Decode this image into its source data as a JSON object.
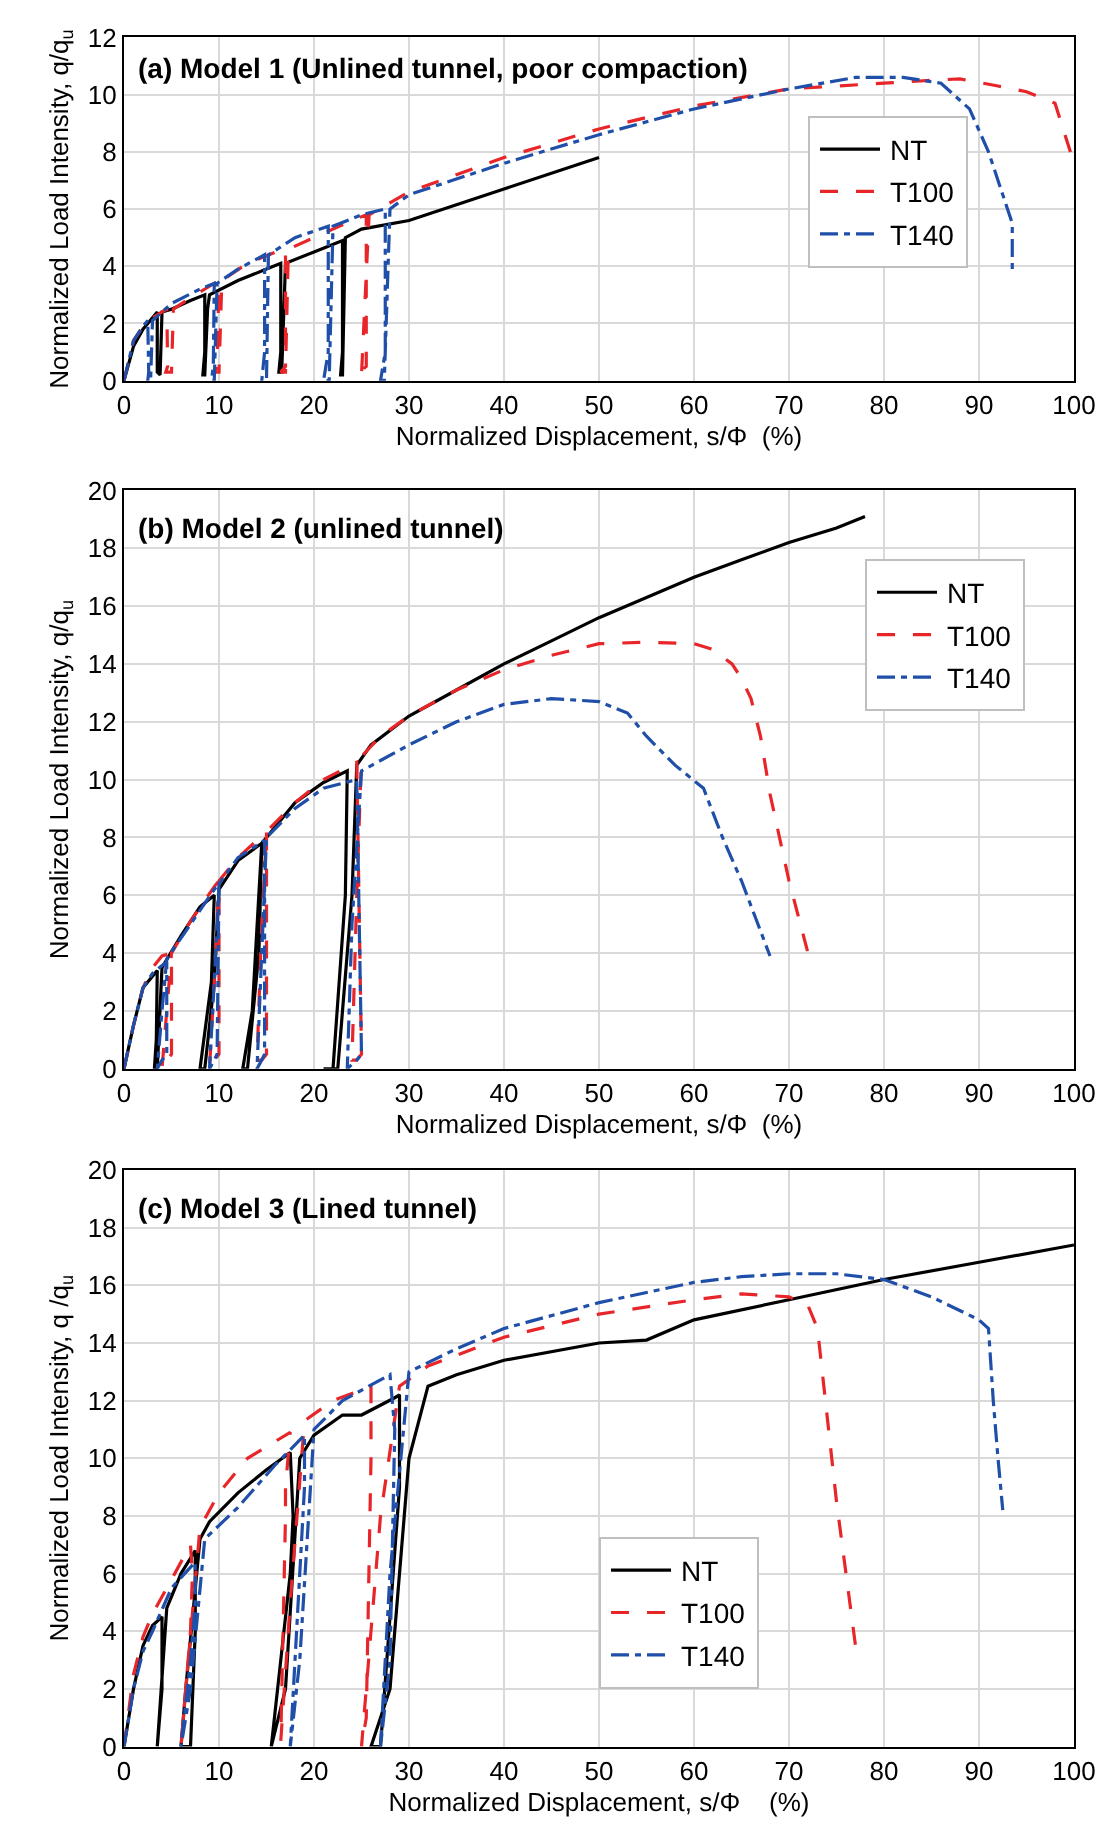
{
  "chart_data": [
    {
      "type": "line",
      "title": "(a) Model 1 (Unlined tunnel, poor compaction)",
      "xlabel": "Normalized Displacement, s/Φ  (%)",
      "ylabel": "Normalized Load Intensity, q/q$_{u}$",
      "xlim": [
        0,
        100
      ],
      "xticks": [
        0,
        10,
        20,
        30,
        40,
        50,
        60,
        70,
        80,
        90,
        100
      ],
      "ylim": [
        0,
        12
      ],
      "yticks": [
        0,
        2,
        4,
        6,
        8,
        10,
        12
      ],
      "grid": true,
      "legend": "right",
      "marker": "none",
      "series": [
        {
          "name": "NT",
          "color": "#000000",
          "line_style": "solid",
          "x": [
            0,
            1,
            2,
            3,
            3.5,
            3.5,
            3.8,
            4,
            5,
            7,
            8.5,
            8.5,
            8.3,
            8.5,
            8.8,
            9,
            12,
            15,
            16.5,
            16.5,
            16.3,
            16.6,
            17,
            20,
            23,
            23,
            22.8,
            23,
            23.3,
            25,
            30,
            40,
            50
          ],
          "values": [
            0,
            1.2,
            1.8,
            2.2,
            2.4,
            0.3,
            0.2,
            2.4,
            2.5,
            2.8,
            3.0,
            1.0,
            0.2,
            0.2,
            2.5,
            3.0,
            3.5,
            3.9,
            4.1,
            1,
            0.3,
            0.3,
            4.1,
            4.5,
            4.9,
            1,
            0.2,
            0.2,
            5.0,
            5.3,
            5.6,
            6.7,
            7.8
          ]
        },
        {
          "name": "T100",
          "color": "#e8262a",
          "line_style": "dashed",
          "x": [
            0,
            1,
            2,
            3,
            4,
            4.5,
            4.6,
            4.4,
            5,
            5.2,
            7,
            9,
            10,
            9.8,
            9.5,
            10,
            10.3,
            13,
            16,
            17,
            17,
            16.5,
            17,
            17.3,
            20,
            24,
            25.5,
            25.5,
            24.5,
            25,
            25.8,
            30,
            40,
            50,
            60,
            70,
            80,
            85,
            88,
            92,
            95,
            98,
            100
          ],
          "values": [
            0,
            1.4,
            1.9,
            2.2,
            2.4,
            2.5,
            0.5,
            0.3,
            0.3,
            2.5,
            2.9,
            3.3,
            3.5,
            0.5,
            0.3,
            0.3,
            3.5,
            4.1,
            4.5,
            4.6,
            0.5,
            0.3,
            0.3,
            4.6,
            5.0,
            5.6,
            5.8,
            0.5,
            0.2,
            0.2,
            5.8,
            6.6,
            7.8,
            8.8,
            9.6,
            10.2,
            10.4,
            10.5,
            10.55,
            10.3,
            10.1,
            9.7,
            7.6
          ]
        },
        {
          "name": "T140",
          "color": "#1f4fa8",
          "line_style": "dashdot",
          "x": [
            0,
            1,
            2,
            2.5,
            2.6,
            2.5,
            2.8,
            3,
            5,
            8,
            9.5,
            9.4,
            9.2,
            9.5,
            9.8,
            12,
            14.8,
            14.8,
            14.5,
            15,
            15.2,
            18,
            21.5,
            21.5,
            21,
            21.6,
            22,
            25,
            27.5,
            27.5,
            27,
            27.4,
            28,
            30,
            40,
            50,
            60,
            70,
            77,
            82,
            86,
            89,
            91,
            92.5,
            93.5,
            93.5
          ],
          "values": [
            0,
            1.4,
            1.9,
            2.1,
            0.3,
            0,
            0,
            2.1,
            2.7,
            3.2,
            3.4,
            0.5,
            0,
            0,
            3.4,
            3.9,
            4.4,
            1,
            0,
            0,
            4.4,
            5.0,
            5.4,
            1,
            0,
            0,
            5.4,
            5.8,
            6.0,
            1,
            0,
            0,
            6.0,
            6.5,
            7.6,
            8.6,
            9.5,
            10.2,
            10.6,
            10.6,
            10.4,
            9.5,
            8,
            6.5,
            5.5,
            3.9
          ]
        }
      ]
    },
    {
      "type": "line",
      "title": "(b) Model 2 (unlined tunnel)",
      "xlabel": "Normalized Displacement, s/Φ  (%)",
      "ylabel": "Normalized Load Intensity, q/q$_{u}$",
      "xlim": [
        0,
        100
      ],
      "xticks": [
        0,
        10,
        20,
        30,
        40,
        50,
        60,
        70,
        80,
        90,
        100
      ],
      "ylim": [
        0,
        20
      ],
      "yticks": [
        0,
        2,
        4,
        6,
        8,
        10,
        12,
        14,
        16,
        18,
        20
      ],
      "grid": true,
      "legend": "top right",
      "marker": "none",
      "series": [
        {
          "name": "NT",
          "color": "#000000",
          "line_style": "solid",
          "x": [
            0,
            1,
            2,
            3,
            3.5,
            3.4,
            3.2,
            3.5,
            4,
            6,
            8,
            9.5,
            9.2,
            8,
            8.5,
            9.5,
            10,
            12,
            14.5,
            14.2,
            13,
            12.5,
            13.5,
            14.5,
            15,
            18,
            21,
            23.5,
            23.3,
            22,
            21,
            22.5,
            24,
            24.5,
            26,
            30,
            35,
            40,
            45,
            50,
            55,
            60,
            65,
            70,
            75,
            78
          ],
          "values": [
            0,
            1.5,
            2.8,
            3.2,
            3.4,
            1,
            0,
            0,
            3.5,
            4.6,
            5.6,
            6.0,
            3,
            0,
            0,
            3,
            6.2,
            7.2,
            7.8,
            4,
            0,
            0,
            2,
            7.8,
            8.0,
            9.2,
            9.9,
            10.3,
            6,
            0,
            0,
            0,
            6,
            10.5,
            11.2,
            12.2,
            13.1,
            14.0,
            14.8,
            15.6,
            16.3,
            17.0,
            17.6,
            18.2,
            18.7,
            19.1
          ]
        },
        {
          "name": "T100",
          "color": "#e8262a",
          "line_style": "dashed",
          "x": [
            0,
            1,
            2,
            3,
            4,
            5,
            5,
            4.5,
            4,
            4.5,
            5,
            7,
            9.5,
            10,
            10,
            9.5,
            9,
            9.5,
            10,
            12,
            15,
            15,
            14.5,
            14,
            14.5,
            15,
            18,
            21,
            24.5,
            25,
            24.5,
            24,
            24.5,
            25,
            27,
            30,
            35,
            40,
            45,
            50,
            55,
            60,
            62,
            64,
            65,
            66,
            67,
            68,
            70,
            72
          ],
          "values": [
            0,
            1.5,
            2.8,
            3.5,
            3.9,
            4.0,
            0.5,
            0.3,
            0,
            2,
            4.0,
            5.1,
            6.3,
            6.5,
            0.5,
            0.3,
            0,
            3,
            6.5,
            7.3,
            8.2,
            0.5,
            0.3,
            0.3,
            5,
            8.2,
            9.2,
            10.0,
            10.6,
            0.5,
            0.3,
            0.3,
            6,
            10.8,
            11.5,
            12.2,
            13.1,
            13.8,
            14.3,
            14.7,
            14.75,
            14.7,
            14.5,
            14.0,
            13.5,
            12.8,
            11.5,
            9.5,
            6.5,
            4.0
          ]
        },
        {
          "name": "T140",
          "color": "#1f4fa8",
          "line_style": "dashdot",
          "x": [
            0,
            1,
            2,
            3,
            4.5,
            4.5,
            4,
            3.5,
            4,
            4.5,
            7,
            9.5,
            10,
            9.8,
            9.5,
            9,
            9.5,
            10,
            12,
            14.8,
            14.8,
            14.5,
            14,
            14.5,
            15,
            18,
            21,
            24.5,
            25,
            24.5,
            23.5,
            24,
            25,
            30,
            35,
            40,
            45,
            50,
            53,
            55,
            58,
            61,
            63,
            65,
            68
          ],
          "values": [
            0,
            1.5,
            2.8,
            3.3,
            3.7,
            0.5,
            0.3,
            0,
            2,
            3.8,
            5.0,
            6.2,
            6.4,
            0.5,
            0.3,
            0,
            3,
            6.4,
            7.3,
            7.9,
            0.5,
            0.3,
            0,
            4,
            8.0,
            9.0,
            9.7,
            10.0,
            0.5,
            0.3,
            0,
            5,
            10.3,
            11.2,
            12.0,
            12.6,
            12.8,
            12.7,
            12.3,
            11.5,
            10.5,
            9.7,
            8.0,
            6.5,
            3.9
          ]
        }
      ]
    },
    {
      "type": "line",
      "title": "(c) Model 3 (Lined tunnel)",
      "xlabel": "Normalized Displacement, s/Φ    (%)",
      "ylabel": "Normalized Load Intensity, q /q$_{u}$",
      "xlim": [
        0,
        100
      ],
      "xticks": [
        0,
        10,
        20,
        30,
        40,
        50,
        60,
        70,
        80,
        90,
        100
      ],
      "ylim": [
        0,
        20
      ],
      "yticks": [
        0,
        2,
        4,
        6,
        8,
        10,
        12,
        14,
        16,
        18,
        20
      ],
      "grid": true,
      "legend": "bottom",
      "marker": "none",
      "series": [
        {
          "name": "NT",
          "color": "#000000",
          "line_style": "solid",
          "x": [
            0,
            1,
            2,
            3,
            4,
            4,
            3.5,
            3.5,
            4.5,
            6,
            7.5,
            7.5,
            7,
            6,
            6.5,
            8,
            9,
            12,
            15,
            17.5,
            17.8,
            17.5,
            15.5,
            17,
            18.5,
            20,
            23,
            25,
            28.5,
            29,
            29,
            27,
            26,
            28,
            30,
            32,
            35,
            40,
            50,
            55,
            60,
            70,
            80,
            90,
            100
          ],
          "values": [
            0,
            2,
            3.5,
            4.2,
            4.5,
            2,
            0,
            0,
            4.8,
            6.0,
            6.8,
            4,
            0,
            0,
            2,
            7.2,
            7.8,
            8.8,
            9.6,
            10.2,
            8,
            6,
            0,
            2,
            10,
            10.8,
            11.5,
            11.5,
            12.1,
            12.2,
            9,
            0,
            0,
            2,
            10,
            12.5,
            12.9,
            13.4,
            14.0,
            14.1,
            14.8,
            15.5,
            16.2,
            16.8,
            17.4
          ]
        },
        {
          "name": "T100",
          "color": "#e8262a",
          "line_style": "dashed",
          "x": [
            0,
            1,
            2,
            3,
            5,
            7,
            7.2,
            7,
            6,
            6.5,
            8,
            10,
            13,
            17.5,
            17,
            17,
            16.5,
            17.5,
            19,
            22,
            26,
            26,
            25.5,
            25,
            27,
            29,
            32,
            40,
            50,
            60,
            65,
            70,
            72,
            73,
            74,
            75,
            76,
            77
          ],
          "values": [
            0,
            2.5,
            3.8,
            4.6,
            5.8,
            7.0,
            6,
            4,
            0,
            2,
            7.6,
            8.8,
            10.0,
            10.9,
            9,
            8,
            0.2,
            5,
            11.3,
            12.0,
            12.5,
            10,
            1,
            0,
            8,
            12.5,
            13.2,
            14.2,
            15.0,
            15.5,
            15.7,
            15.6,
            15.3,
            14.5,
            11.5,
            8.5,
            6.0,
            3.5
          ]
        },
        {
          "name": "T140",
          "color": "#1f4fa8",
          "line_style": "dashdot",
          "x": [
            0,
            1,
            2,
            3,
            5,
            7.5,
            7.5,
            7,
            6,
            7,
            8.5,
            12,
            16,
            19,
            19,
            18.5,
            17.5,
            18.5,
            20,
            23,
            28,
            28.5,
            28,
            27,
            28,
            30,
            35,
            40,
            50,
            60,
            65,
            70,
            75,
            80,
            85,
            90,
            91,
            91.5,
            92,
            92.5
          ],
          "values": [
            0,
            2,
            3.3,
            4,
            5.5,
            6.4,
            5,
            3,
            0,
            2,
            7.2,
            8.3,
            9.8,
            10.8,
            9,
            6,
            0,
            3,
            11.0,
            12.0,
            12.9,
            11,
            3,
            0,
            6,
            13.0,
            13.8,
            14.5,
            15.4,
            16.1,
            16.3,
            16.4,
            16.4,
            16.2,
            15.6,
            14.8,
            14.5,
            12,
            10,
            8.2
          ]
        }
      ]
    }
  ]
}
